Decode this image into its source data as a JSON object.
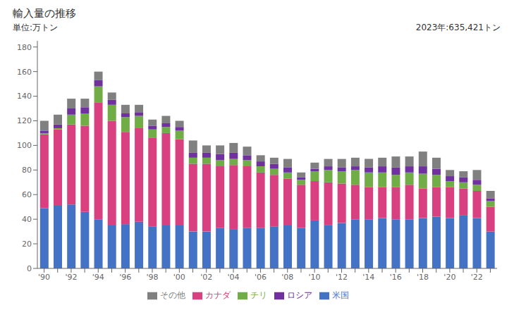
{
  "chart_data": {
    "type": "bar",
    "title": "輸入量の推移",
    "ylabel": "単位:万トン",
    "annotation": "2023年:635,421トン",
    "categories": [
      "'90",
      null,
      "'92",
      null,
      "'94",
      null,
      "'96",
      null,
      "'98",
      null,
      "'00",
      null,
      "'02",
      null,
      "'04",
      null,
      "'06",
      null,
      "'08",
      null,
      "'10",
      null,
      "'12",
      null,
      "'14",
      null,
      "'16",
      null,
      "'18",
      null,
      "'20",
      null,
      "'22",
      null
    ],
    "series": [
      {
        "name": "米国",
        "color": "#4472C4",
        "values": [
          49,
          51,
          52,
          46,
          40,
          35,
          36,
          38,
          34,
          35,
          35,
          30,
          30,
          33,
          32,
          33,
          33,
          34,
          35,
          33,
          39,
          35,
          37,
          40,
          40,
          41,
          40,
          40,
          41,
          42,
          41,
          43,
          41,
          30
        ]
      },
      {
        "name": "カナダ",
        "color": "#D94080",
        "values": [
          60,
          62,
          65,
          70,
          95,
          85,
          75,
          76,
          72,
          75,
          70,
          55,
          55,
          50,
          52,
          50,
          45,
          42,
          38,
          35,
          32,
          35,
          32,
          28,
          26,
          25,
          26,
          28,
          24,
          24,
          25,
          22,
          22,
          20
        ]
      },
      {
        "name": "チリ",
        "color": "#70AD47",
        "values": [
          1,
          1,
          8,
          10,
          13,
          13,
          12,
          10,
          7,
          5,
          7,
          5,
          5,
          5,
          5,
          5,
          5,
          5,
          5,
          4,
          8,
          10,
          10,
          12,
          12,
          12,
          10,
          10,
          12,
          10,
          5,
          5,
          5,
          5
        ]
      },
      {
        "name": "ロシア",
        "color": "#7030A0",
        "values": [
          2,
          3,
          5,
          5,
          5,
          4,
          3,
          3,
          3,
          3,
          3,
          4,
          4,
          5,
          5,
          4,
          4,
          4,
          4,
          2,
          2,
          3,
          3,
          3,
          4,
          5,
          6,
          5,
          6,
          5,
          4,
          4,
          4,
          2
        ]
      },
      {
        "name": "その他",
        "color": "#808080",
        "values": [
          8,
          8,
          8,
          7,
          7,
          6,
          7,
          6,
          5,
          6,
          5,
          10,
          6,
          7,
          8,
          7,
          5,
          5,
          7,
          4,
          5,
          6,
          7,
          7,
          7,
          7,
          9,
          8,
          12,
          9,
          5,
          5,
          8,
          6
        ]
      }
    ],
    "ylim": [
      0,
      185
    ],
    "yticks": [
      0,
      20,
      40,
      60,
      80,
      100,
      120,
      140,
      160,
      180
    ],
    "stacked": true,
    "grid": false,
    "legend": "bottom"
  }
}
